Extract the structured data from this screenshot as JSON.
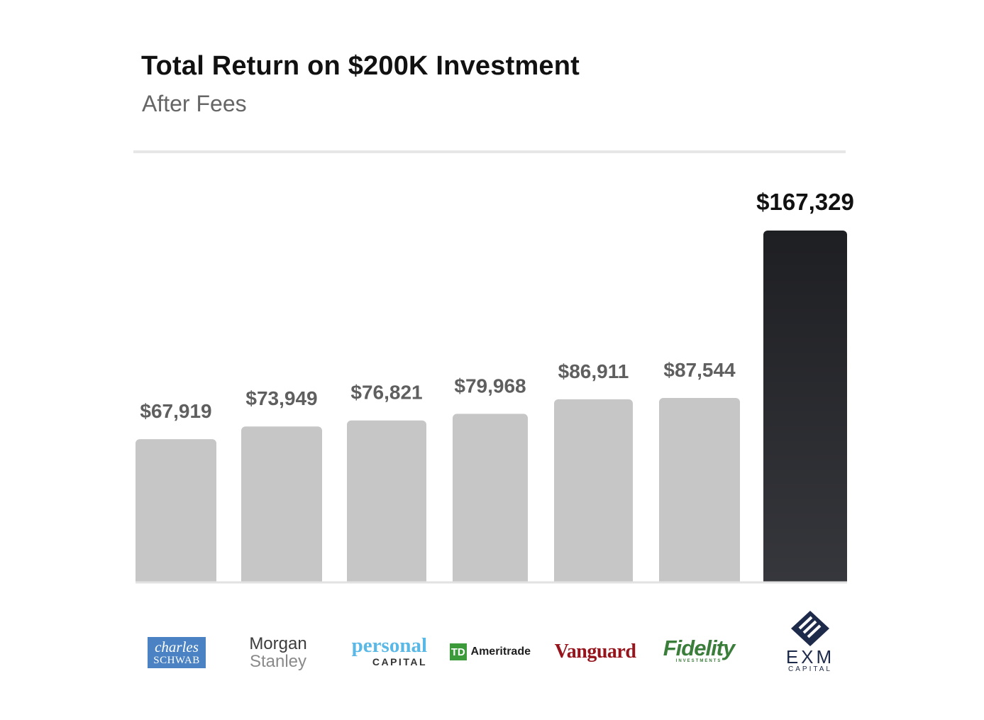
{
  "chart_data": {
    "type": "bar",
    "title": "Total Return on $200K Investment",
    "subtitle": "After Fees",
    "categories": [
      "charles SCHWAB",
      "Morgan Stanley",
      "personal CAPITAL",
      "TD Ameritrade",
      "Vanguard",
      "Fidelity INVESTMENTS",
      "EXM CAPITAL"
    ],
    "values": [
      67919,
      73949,
      76821,
      79968,
      86911,
      87544,
      167329
    ],
    "value_labels": [
      "$67,919",
      "$73,949",
      "$76,821",
      "$79,968",
      "$86,911",
      "$87,544",
      "$167,329"
    ],
    "highlight_index": 6,
    "colors": {
      "bar": "#c6c6c6",
      "highlight_bar_top": "#1e1f23",
      "highlight_bar_bottom": "#36373c",
      "label": "#5f5f5f",
      "highlight_label": "#111111",
      "baseline": "#e2e2e2"
    },
    "ylim": [
      0,
      167329
    ],
    "grid": false,
    "xlabel": "",
    "ylabel": ""
  },
  "logos": {
    "schwab": {
      "line1": "charles",
      "line2": "SCHWAB",
      "icon": "charles-schwab-logo"
    },
    "morgan_stanley": {
      "line1": "Morgan",
      "line2": "Stanley",
      "icon": "morgan-stanley-logo"
    },
    "personal_capital": {
      "line1": "personal",
      "line2": "CAPITAL",
      "icon": "personal-capital-logo"
    },
    "td_ameritrade": {
      "box": "TD",
      "text": "Ameritrade",
      "icon": "td-ameritrade-logo"
    },
    "vanguard": {
      "text": "Vanguard",
      "icon": "vanguard-logo"
    },
    "fidelity": {
      "line1": "Fidelity",
      "line2": "INVESTMENTS",
      "icon": "fidelity-logo"
    },
    "exm": {
      "line1": "EXM",
      "line2": "CAPITAL",
      "icon": "exm-capital-logo"
    }
  }
}
